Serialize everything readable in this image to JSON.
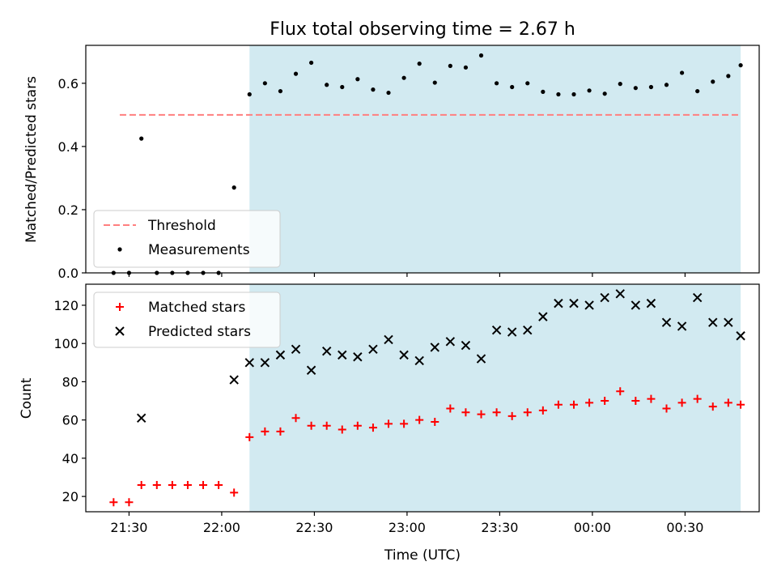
{
  "title": "Flux total observing time = 2.67 h",
  "colors": {
    "shade": "#add8e6",
    "threshold": "#ff7f7f",
    "measurement": "#000000",
    "matched": "#ff0000",
    "predicted": "#000000"
  },
  "chart_data": [
    {
      "type": "scatter",
      "panel": "top",
      "ylabel": "Matched/Predicted stars",
      "xlabel": "",
      "ylim": [
        0,
        0.72
      ],
      "yticks": [
        "0.0",
        "0.2",
        "0.4",
        "0.6"
      ],
      "shaded_range": [
        "22:09",
        "00:48"
      ],
      "threshold": {
        "name": "Threshold",
        "value": 0.5,
        "from": "21:27",
        "to": "00:48",
        "style": "dashed"
      },
      "legend_placement": "lower-left",
      "series": [
        {
          "name": "Measurements",
          "marker": "dot",
          "points": [
            [
              "21:25",
              0.0
            ],
            [
              "21:30",
              0.0
            ],
            [
              "21:34",
              0.425
            ],
            [
              "21:39",
              0.0
            ],
            [
              "21:44",
              0.0
            ],
            [
              "21:49",
              0.0
            ],
            [
              "21:54",
              0.0
            ],
            [
              "21:59",
              0.0
            ],
            [
              "22:04",
              0.27
            ],
            [
              "22:09",
              0.565
            ],
            [
              "22:14",
              0.6
            ],
            [
              "22:19",
              0.575
            ],
            [
              "22:24",
              0.63
            ],
            [
              "22:29",
              0.665
            ],
            [
              "22:34",
              0.595
            ],
            [
              "22:39",
              0.588
            ],
            [
              "22:44",
              0.613
            ],
            [
              "22:49",
              0.58
            ],
            [
              "22:54",
              0.57
            ],
            [
              "22:59",
              0.617
            ],
            [
              "23:04",
              0.662
            ],
            [
              "23:09",
              0.602
            ],
            [
              "23:14",
              0.655
            ],
            [
              "23:19",
              0.65
            ],
            [
              "23:24",
              0.688
            ],
            [
              "23:29",
              0.6
            ],
            [
              "23:34",
              0.588
            ],
            [
              "23:39",
              0.6
            ],
            [
              "23:44",
              0.573
            ],
            [
              "23:49",
              0.565
            ],
            [
              "23:54",
              0.565
            ],
            [
              "23:59",
              0.577
            ],
            [
              "00:04",
              0.567
            ],
            [
              "00:09",
              0.598
            ],
            [
              "00:14",
              0.585
            ],
            [
              "00:19",
              0.588
            ],
            [
              "00:24",
              0.595
            ],
            [
              "00:29",
              0.633
            ],
            [
              "00:34",
              0.575
            ],
            [
              "00:39",
              0.605
            ],
            [
              "00:44",
              0.623
            ],
            [
              "00:48",
              0.657
            ]
          ]
        }
      ]
    },
    {
      "type": "scatter",
      "panel": "bottom",
      "ylabel": "Count",
      "xlabel": "Time (UTC)",
      "ylim": [
        12,
        131
      ],
      "yticks": [
        "20",
        "40",
        "60",
        "80",
        "100",
        "120"
      ],
      "xticks": [
        "21:30",
        "22:00",
        "22:30",
        "23:00",
        "23:30",
        "00:00",
        "00:30"
      ],
      "shaded_range": [
        "22:09",
        "00:48"
      ],
      "legend_placement": "upper-left",
      "series": [
        {
          "name": "Matched stars",
          "marker": "plus",
          "points": [
            [
              "21:25",
              17
            ],
            [
              "21:30",
              17
            ],
            [
              "21:34",
              26
            ],
            [
              "21:39",
              26
            ],
            [
              "21:44",
              26
            ],
            [
              "21:49",
              26
            ],
            [
              "21:54",
              26
            ],
            [
              "21:59",
              26
            ],
            [
              "22:04",
              22
            ],
            [
              "22:09",
              51
            ],
            [
              "22:14",
              54
            ],
            [
              "22:19",
              54
            ],
            [
              "22:24",
              61
            ],
            [
              "22:29",
              57
            ],
            [
              "22:34",
              57
            ],
            [
              "22:39",
              55
            ],
            [
              "22:44",
              57
            ],
            [
              "22:49",
              56
            ],
            [
              "22:54",
              58
            ],
            [
              "22:59",
              58
            ],
            [
              "23:04",
              60
            ],
            [
              "23:09",
              59
            ],
            [
              "23:14",
              66
            ],
            [
              "23:19",
              64
            ],
            [
              "23:24",
              63
            ],
            [
              "23:29",
              64
            ],
            [
              "23:34",
              62
            ],
            [
              "23:39",
              64
            ],
            [
              "23:44",
              65
            ],
            [
              "23:49",
              68
            ],
            [
              "23:54",
              68
            ],
            [
              "23:59",
              69
            ],
            [
              "00:04",
              70
            ],
            [
              "00:09",
              75
            ],
            [
              "00:14",
              70
            ],
            [
              "00:19",
              71
            ],
            [
              "00:24",
              66
            ],
            [
              "00:29",
              69
            ],
            [
              "00:34",
              71
            ],
            [
              "00:39",
              67
            ],
            [
              "00:44",
              69
            ],
            [
              "00:48",
              68
            ]
          ]
        },
        {
          "name": "Predicted stars",
          "marker": "x",
          "points": [
            [
              "21:34",
              61
            ],
            [
              "22:04",
              81
            ],
            [
              "22:09",
              90
            ],
            [
              "22:14",
              90
            ],
            [
              "22:19",
              94
            ],
            [
              "22:24",
              97
            ],
            [
              "22:29",
              86
            ],
            [
              "22:34",
              96
            ],
            [
              "22:39",
              94
            ],
            [
              "22:44",
              93
            ],
            [
              "22:49",
              97
            ],
            [
              "22:54",
              102
            ],
            [
              "22:59",
              94
            ],
            [
              "23:04",
              91
            ],
            [
              "23:09",
              98
            ],
            [
              "23:14",
              101
            ],
            [
              "23:19",
              99
            ],
            [
              "23:24",
              92
            ],
            [
              "23:29",
              107
            ],
            [
              "23:34",
              106
            ],
            [
              "23:39",
              107
            ],
            [
              "23:44",
              114
            ],
            [
              "23:49",
              121
            ],
            [
              "23:54",
              121
            ],
            [
              "23:59",
              120
            ],
            [
              "00:04",
              124
            ],
            [
              "00:09",
              126
            ],
            [
              "00:14",
              120
            ],
            [
              "00:19",
              121
            ],
            [
              "00:24",
              111
            ],
            [
              "00:29",
              109
            ],
            [
              "00:34",
              124
            ],
            [
              "00:39",
              111
            ],
            [
              "00:44",
              111
            ],
            [
              "00:48",
              104
            ]
          ]
        }
      ]
    }
  ]
}
